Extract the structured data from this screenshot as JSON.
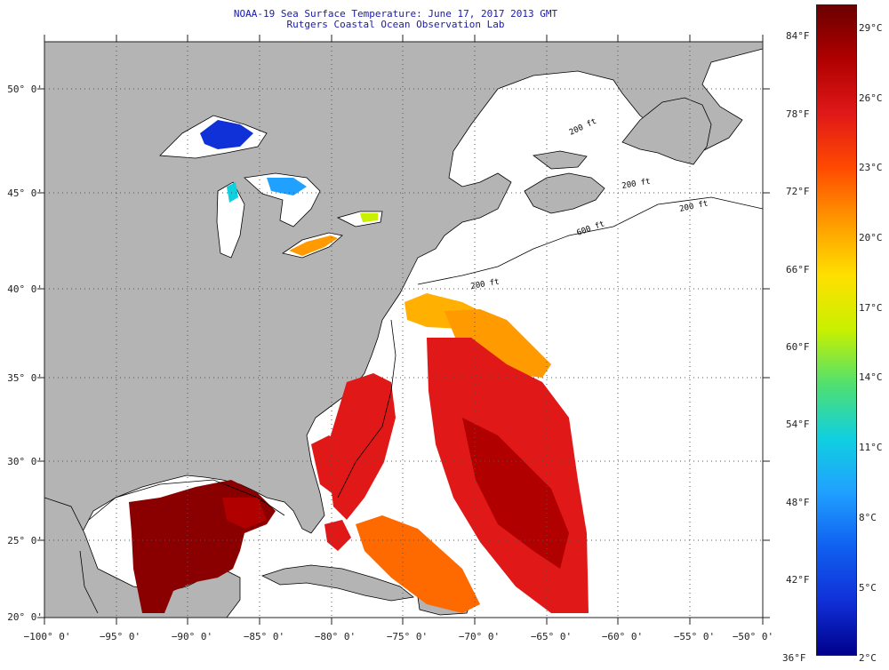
{
  "title": {
    "line1": "NOAA-19 Sea Surface Temperature:  June 17, 2017 2013 GMT",
    "line2": "Rutgers Coastal Ocean Observation Lab"
  },
  "map": {
    "lat_labels": [
      "50° 0'",
      "45° 0'",
      "40° 0'",
      "35° 0'",
      "30° 0'",
      "25° 0'",
      "20° 0'"
    ],
    "lon_labels": [
      "−100° 0'",
      "−95° 0'",
      "−90° 0'",
      "−85° 0'",
      "−80° 0'",
      "−75° 0'",
      "−70° 0'",
      "−65° 0'",
      "−60° 0'",
      "−55° 0'",
      "−50° 0'"
    ],
    "contour_labels": [
      "200 ft",
      "200 ft",
      "200 ft",
      "600 ft",
      "200 ft"
    ],
    "colors": {
      "land": "#b4b4b4",
      "ocean_nodata": "#ffffff",
      "coast": "#000000",
      "grid": "#555555"
    }
  },
  "colorbar": {
    "fahrenheit": [
      "84°F",
      "78°F",
      "72°F",
      "66°F",
      "60°F",
      "54°F",
      "48°F",
      "42°F",
      "36°F"
    ],
    "celsius": [
      "29°C",
      "26°C",
      "23°C",
      "20°C",
      "17°C",
      "14°C",
      "11°C",
      "8°C",
      "5°C",
      "2°C"
    ],
    "stops": [
      "#6b0000",
      "#b00000",
      "#e01818",
      "#ff4a00",
      "#ff9a00",
      "#ffe000",
      "#c8f000",
      "#50e070",
      "#10d0e0",
      "#20a0ff",
      "#1060f0",
      "#1030d8",
      "#00008c"
    ]
  }
}
